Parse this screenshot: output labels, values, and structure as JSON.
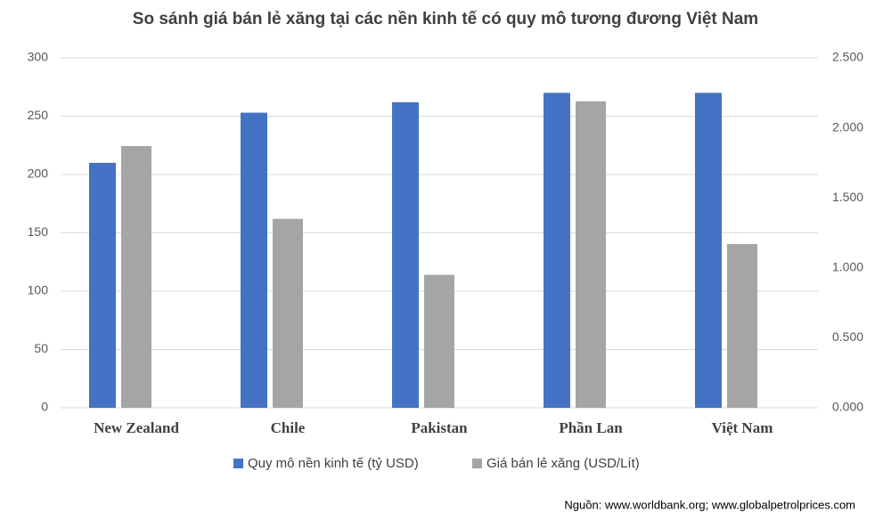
{
  "chart_data": {
    "type": "bar",
    "title": "So sánh giá bán lẻ xăng tại các nền kinh tế có quy mô tương đương Việt Nam",
    "categories": [
      "New Zealand",
      "Chile",
      "Pakistan",
      "Phần Lan",
      "Việt Nam"
    ],
    "series": [
      {
        "name": "Quy mô nền kinh tế (tỷ USD)",
        "color": "#4472c4",
        "values": [
          210,
          253,
          262,
          270,
          270
        ]
      },
      {
        "name": "Giá bán lẻ xăng (USD/Lít)",
        "color": "#a5a5a5",
        "axis": "y2",
        "values": [
          1.87,
          1.35,
          0.95,
          2.19,
          1.17
        ]
      }
    ],
    "ylim": [
      0,
      300
    ],
    "yticks": [
      0,
      50,
      100,
      150,
      200,
      250,
      300
    ],
    "y2lim": [
      0,
      2.5
    ],
    "y2ticks": [
      {
        "value": 0,
        "label": "0.000"
      },
      {
        "value": 0.5,
        "label": "0.500"
      },
      {
        "value": 1,
        "label": "1.000"
      },
      {
        "value": 1.5,
        "label": "1.500"
      },
      {
        "value": 2,
        "label": "2.000"
      },
      {
        "value": 2.5,
        "label": "2.500"
      }
    ],
    "grid": true,
    "legend": "bottom",
    "source": "Nguồn: www.worldbank.org; www.globalpetrolprices.com"
  }
}
